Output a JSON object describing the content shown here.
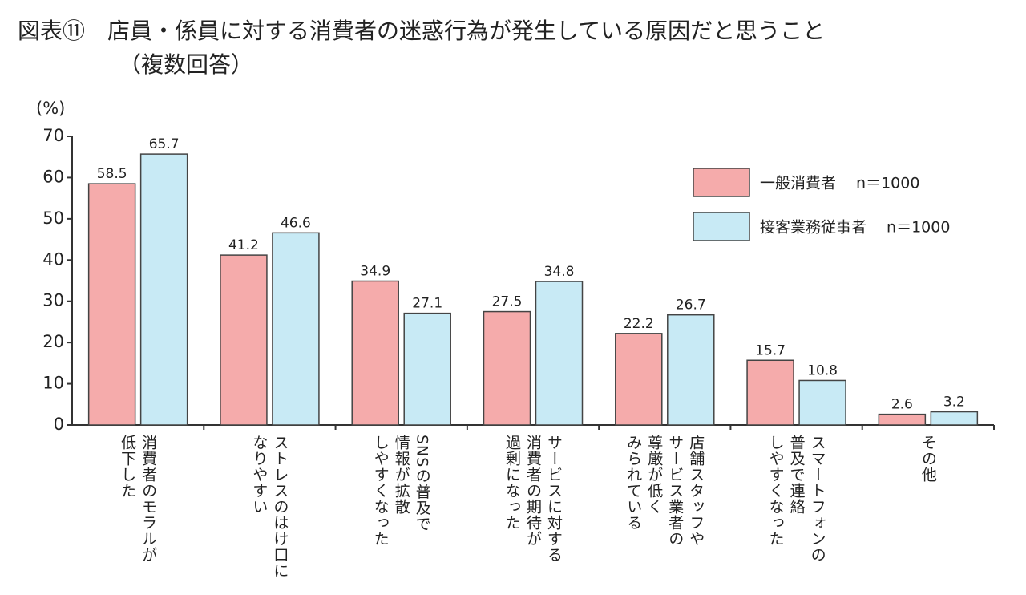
{
  "chart_data": {
    "type": "bar",
    "title": "図表⑪　店員・係員に対する消費者の迷惑行為が発生している原因だと思うこと",
    "subtitle": "（複数回答）",
    "y_label": "(%)",
    "categories": [
      "消費者のモラルが\n低下した",
      "ストレスのはけ口に\nなりやすい",
      "SNSの普及で\n情報が拡散\nしやすくなった",
      "サービスに対する\n消費者の期待が\n過剰になった",
      "店舗スタッフや\nサービス業者の\n尊厳が低く\nみられている",
      "スマートフォンの\n普及で連絡\nしやすくなった",
      "その他"
    ],
    "series": [
      {
        "name": "一般消費者　 n＝1000",
        "color": "#f5abab",
        "values": [
          58.5,
          41.2,
          34.9,
          27.5,
          22.2,
          15.7,
          2.6
        ]
      },
      {
        "name": "接客業務従事者　 n＝1000",
        "color": "#c8eaf5",
        "values": [
          65.7,
          46.6,
          27.1,
          34.8,
          26.7,
          10.8,
          3.2
        ]
      }
    ],
    "ylim": [
      0,
      70
    ],
    "yticks": [
      0,
      10,
      20,
      30,
      40,
      50,
      60,
      70
    ]
  }
}
